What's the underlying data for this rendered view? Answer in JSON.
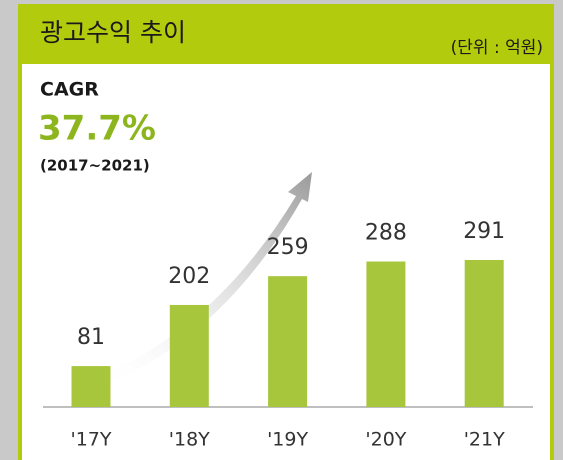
{
  "chart_data": {
    "type": "bar",
    "title": "광고수익 추이",
    "subtitle": "(단위 : 억원)",
    "annotations": {
      "label": "CAGR",
      "value": "37.7%",
      "period": "(2017~2021)"
    },
    "categories": [
      "'17Y",
      "'18Y",
      "'19Y",
      "'20Y",
      "'21Y"
    ],
    "values": [
      81,
      202,
      259,
      288,
      291
    ],
    "color": "#a8c63b"
  }
}
